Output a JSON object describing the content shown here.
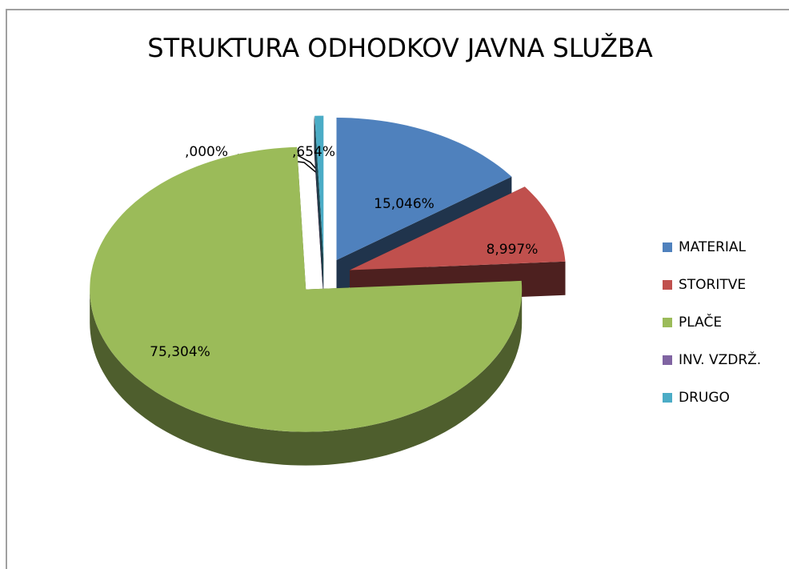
{
  "chart_data": {
    "type": "pie",
    "title": "STRUKTURA ODHODKOV JAVNA SLUŽBA",
    "categories": [
      "MATERIAL",
      "STORITVE",
      "PLAČE",
      "INV. VZDRŽ.",
      "DRUGO"
    ],
    "values": [
      15.046,
      8.997,
      75.304,
      0,
      0.654
    ],
    "value_labels": [
      "15,046%",
      "8,997%",
      "75,304%",
      ",000%",
      ",654%"
    ],
    "colors": [
      "#4f81bd",
      "#c0504d",
      "#9bbb59",
      "#8064a2",
      "#4bacc6"
    ],
    "legend": "right"
  }
}
